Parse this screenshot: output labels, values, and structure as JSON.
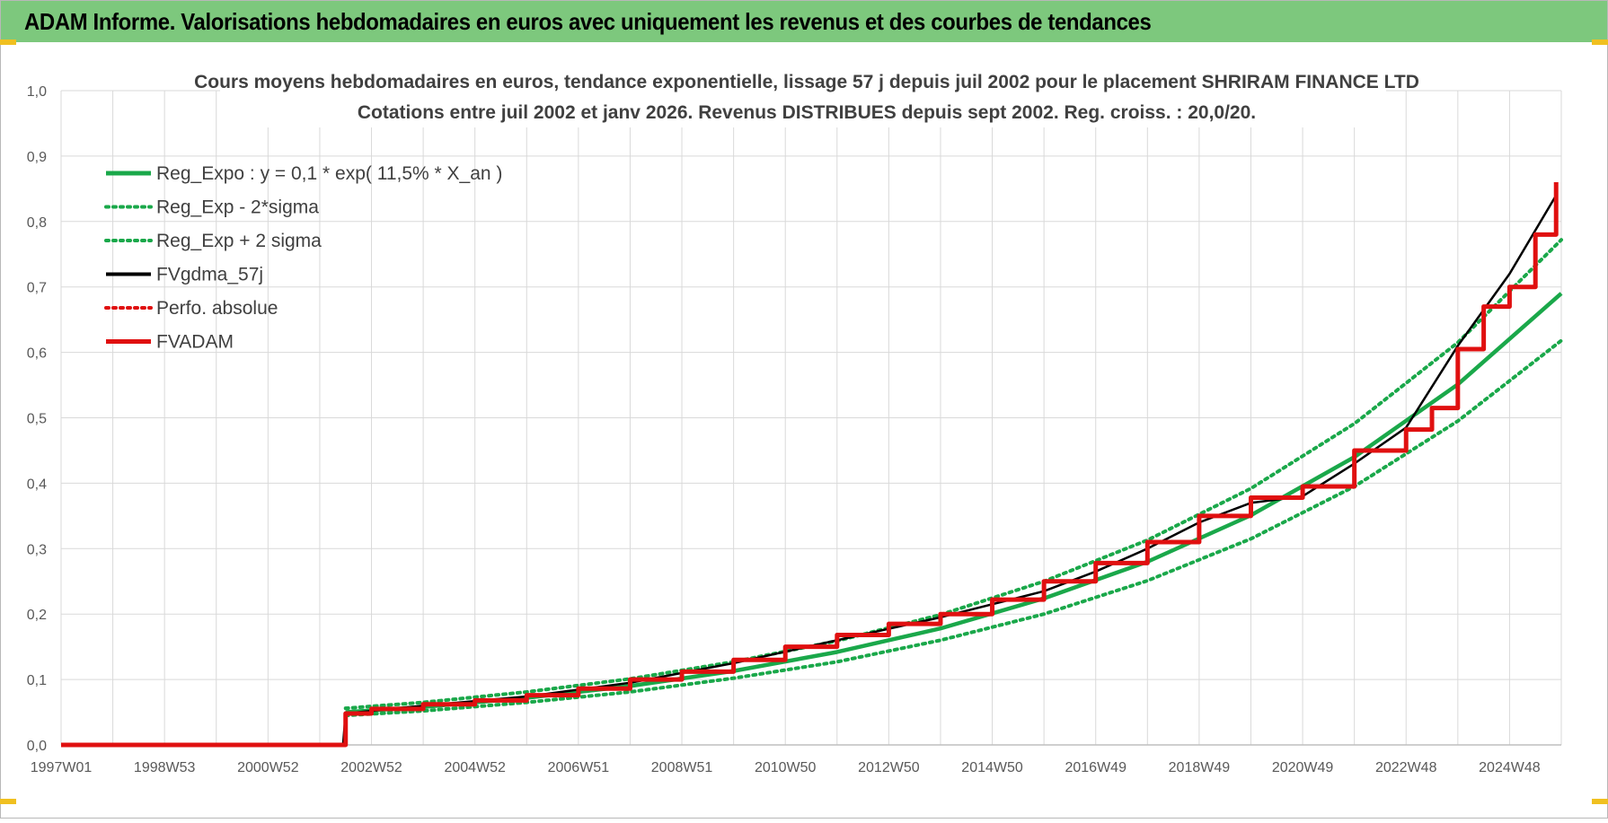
{
  "header": {
    "title": "ADAM Informe. Valorisations hebdomadaires en euros avec uniquement les revenus et des courbes de tendances"
  },
  "colors": {
    "header_bg": "#7dc87d",
    "reg_expo": "#1aa84a",
    "fvgdma": "#000000",
    "fvadam": "#e01010",
    "perfo": "#e01010",
    "grid": "#d9d9d9"
  },
  "chart_data": {
    "type": "line",
    "title_lines": [
      "Cours moyens hebdomadaires en euros, tendance exponentielle, lissage 57 j depuis juil 2002 pour le placement SHRIRAM FINANCE LTD",
      "Cotations entre juil 2002 et janv 2026. Revenus DISTRIBUES depuis sept 2002. Reg. croiss. : 20,0/20."
    ],
    "xlabel": "",
    "ylabel": "",
    "ylim": [
      0,
      1.0
    ],
    "xlim": [
      1997.0,
      2026.0
    ],
    "y_ticks": [
      "0,0",
      "0,1",
      "0,2",
      "0,3",
      "0,4",
      "0,5",
      "0,6",
      "0,7",
      "0,8",
      "0,9",
      "1,0"
    ],
    "x_ticks": [
      {
        "label": "1997W01",
        "x": 1997.0
      },
      {
        "label": "1998W53",
        "x": 1999.0
      },
      {
        "label": "2000W52",
        "x": 2001.0
      },
      {
        "label": "2002W52",
        "x": 2003.0
      },
      {
        "label": "2004W52",
        "x": 2005.0
      },
      {
        "label": "2006W51",
        "x": 2007.0
      },
      {
        "label": "2008W51",
        "x": 2009.0
      },
      {
        "label": "2010W50",
        "x": 2011.0
      },
      {
        "label": "2012W50",
        "x": 2013.0
      },
      {
        "label": "2014W50",
        "x": 2015.0
      },
      {
        "label": "2016W49",
        "x": 2017.0
      },
      {
        "label": "2018W49",
        "x": 2019.0
      },
      {
        "label": "2020W49",
        "x": 2021.0
      },
      {
        "label": "2022W48",
        "x": 2023.0
      },
      {
        "label": "2024W48",
        "x": 2025.0
      }
    ],
    "grid": true,
    "legend_position": "top-left",
    "series": [
      {
        "name": "Reg_Expo : y = 0,1 * exp( 11,5% *  X_an )",
        "style": "solid-thick",
        "color": "#1aa84a",
        "x": [
          2002.5,
          2004,
          2006,
          2008,
          2010,
          2012,
          2014,
          2016,
          2018,
          2020,
          2022,
          2024,
          2026
        ],
        "values": [
          0.05,
          0.058,
          0.072,
          0.09,
          0.113,
          0.142,
          0.178,
          0.224,
          0.28,
          0.351,
          0.44,
          0.551,
          0.69
        ]
      },
      {
        "name": "Reg_Exp - 2*sigma",
        "style": "dotted",
        "color": "#1aa84a",
        "x": [
          2002.5,
          2004,
          2006,
          2008,
          2010,
          2012,
          2014,
          2016,
          2018,
          2020,
          2022,
          2024,
          2026
        ],
        "values": [
          0.045,
          0.052,
          0.065,
          0.081,
          0.102,
          0.127,
          0.16,
          0.2,
          0.251,
          0.315,
          0.395,
          0.495,
          0.618
        ]
      },
      {
        "name": "Reg_Exp + 2 sigma",
        "style": "dotted",
        "color": "#1aa84a",
        "x": [
          2002.5,
          2004,
          2006,
          2008,
          2010,
          2012,
          2014,
          2016,
          2018,
          2020,
          2022,
          2024,
          2026
        ],
        "values": [
          0.056,
          0.065,
          0.081,
          0.101,
          0.127,
          0.159,
          0.199,
          0.25,
          0.313,
          0.392,
          0.491,
          0.615,
          0.772
        ]
      },
      {
        "name": "FVgdma_57j",
        "style": "solid",
        "color": "#000000",
        "x": [
          1997.0,
          2002.45,
          2002.5,
          2004,
          2006,
          2008,
          2010,
          2012,
          2014,
          2016,
          2017,
          2018,
          2019,
          2020,
          2021,
          2022,
          2023,
          2024,
          2025,
          2025.9
        ],
        "values": [
          0.0,
          0.0,
          0.048,
          0.06,
          0.074,
          0.095,
          0.125,
          0.16,
          0.195,
          0.235,
          0.265,
          0.3,
          0.34,
          0.37,
          0.38,
          0.43,
          0.485,
          0.61,
          0.72,
          0.84
        ]
      },
      {
        "name": "Perfo. absolue",
        "style": "dotted",
        "color": "#e01010",
        "x": [],
        "values": []
      },
      {
        "name": "FVADAM",
        "style": "solid-thick-step",
        "color": "#e01010",
        "x": [
          1997.0,
          2002.45,
          2002.5,
          2003,
          2004,
          2005,
          2006,
          2007,
          2008,
          2009,
          2010,
          2011,
          2012,
          2013,
          2014,
          2015,
          2016,
          2017,
          2018,
          2019,
          2020,
          2021,
          2022,
          2023,
          2023.5,
          2024,
          2024.5,
          2025,
          2025.5,
          2025.9
        ],
        "values": [
          0.0,
          0.0,
          0.048,
          0.055,
          0.062,
          0.068,
          0.076,
          0.086,
          0.1,
          0.112,
          0.13,
          0.15,
          0.168,
          0.185,
          0.2,
          0.222,
          0.25,
          0.278,
          0.31,
          0.35,
          0.378,
          0.395,
          0.45,
          0.482,
          0.515,
          0.605,
          0.67,
          0.7,
          0.78,
          0.86
        ]
      }
    ]
  }
}
